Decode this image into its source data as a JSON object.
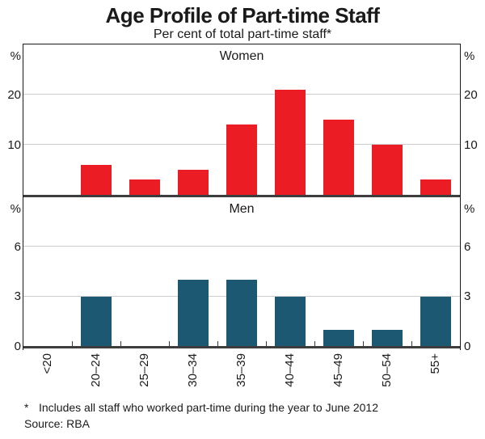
{
  "header": {
    "title": "Age Profile of Part-time Staff",
    "subtitle": "Per cent of total part-time staff*"
  },
  "chart_data": [
    {
      "type": "bar",
      "panel_label": "Women",
      "unit_label": "%",
      "categories": [
        "<20",
        "20–24",
        "25–29",
        "30–34",
        "35–39",
        "40–44",
        "45–49",
        "50–54",
        "55+"
      ],
      "values": [
        0,
        6,
        3,
        5,
        14,
        21,
        15,
        10,
        3
      ],
      "ylim": [
        0,
        30
      ],
      "gridlines": [
        10,
        20
      ],
      "ytick_values": [
        10,
        20
      ],
      "ytick_labels": [
        "10",
        "20"
      ],
      "bar_color": "#EC1C24",
      "legend_position": "none",
      "grid": true
    },
    {
      "type": "bar",
      "panel_label": "Men",
      "unit_label": "%",
      "categories": [
        "<20",
        "20–24",
        "25–29",
        "30–34",
        "35–39",
        "40–44",
        "45–49",
        "50–54",
        "55+"
      ],
      "values": [
        0,
        3,
        0,
        4,
        4,
        3,
        1,
        1,
        3
      ],
      "ylim": [
        0,
        9
      ],
      "gridlines": [
        3,
        6
      ],
      "ytick_values": [
        0,
        3,
        6
      ],
      "ytick_labels": [
        "0",
        "3",
        "6"
      ],
      "bar_color": "#1D5872",
      "legend_position": "none",
      "grid": true
    }
  ],
  "footer": {
    "footnote_marker": "*",
    "footnote_text": "Includes all staff who worked part-time during the year to June 2012",
    "source": "Source: RBA"
  },
  "colors": {
    "women_bar": "#EC1C24",
    "men_bar": "#1D5872",
    "gridline": "#CDCDCD",
    "axis": "#3D3D3D",
    "frame": "#1A1A1A",
    "text": "#1A1A1A"
  }
}
